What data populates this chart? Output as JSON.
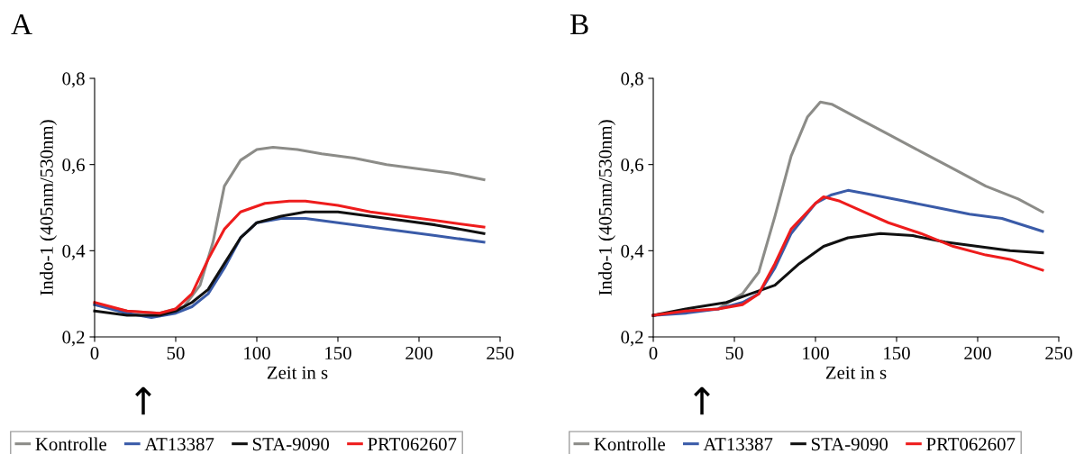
{
  "chart_data": [
    {
      "type": "line",
      "title": "A",
      "xlabel": "Zeit in s",
      "ylabel": "Indo-1 (405nm/530nm)",
      "xlim": [
        0,
        250
      ],
      "xticks": [
        0,
        50,
        100,
        150,
        200,
        250
      ],
      "ylim": [
        0.2,
        0.8
      ],
      "yticks": [
        {
          "value": 0.2,
          "label": "0,2"
        },
        {
          "value": 0.4,
          "label": "0,4"
        },
        {
          "value": 0.6,
          "label": "0,6"
        },
        {
          "value": 0.8,
          "label": "0,8"
        }
      ],
      "grid": false,
      "legend": "bottom",
      "marker": "none",
      "line_style": "solid",
      "annotations": [
        "↑"
      ],
      "series": [
        {
          "name": "Kontrolle",
          "color": "#8c8c88",
          "x": [
            0,
            20,
            40,
            55,
            65,
            73,
            80,
            90,
            100,
            110,
            125,
            140,
            160,
            180,
            200,
            220,
            240
          ],
          "values": [
            0.275,
            0.26,
            0.255,
            0.27,
            0.32,
            0.42,
            0.55,
            0.61,
            0.635,
            0.64,
            0.635,
            0.625,
            0.615,
            0.6,
            0.59,
            0.58,
            0.565
          ]
        },
        {
          "name": "AT13387",
          "color": "#3a5ba8",
          "x": [
            0,
            20,
            35,
            50,
            60,
            70,
            80,
            90,
            100,
            115,
            130,
            150,
            170,
            190,
            210,
            240
          ],
          "values": [
            0.275,
            0.255,
            0.245,
            0.255,
            0.27,
            0.3,
            0.36,
            0.43,
            0.465,
            0.475,
            0.475,
            0.465,
            0.455,
            0.445,
            0.435,
            0.42
          ]
        },
        {
          "name": "STA-9090",
          "color": "#111111",
          "x": [
            0,
            20,
            40,
            50,
            60,
            70,
            80,
            90,
            100,
            115,
            130,
            150,
            170,
            190,
            210,
            240
          ],
          "values": [
            0.26,
            0.25,
            0.25,
            0.26,
            0.28,
            0.31,
            0.37,
            0.43,
            0.465,
            0.48,
            0.49,
            0.49,
            0.48,
            0.47,
            0.46,
            0.44
          ]
        },
        {
          "name": "PRT062607",
          "color": "#ee1c1c",
          "x": [
            0,
            20,
            40,
            50,
            60,
            70,
            80,
            90,
            105,
            120,
            130,
            150,
            170,
            190,
            210,
            240
          ],
          "values": [
            0.28,
            0.26,
            0.255,
            0.265,
            0.3,
            0.38,
            0.45,
            0.49,
            0.51,
            0.515,
            0.515,
            0.505,
            0.49,
            0.48,
            0.47,
            0.455
          ]
        }
      ]
    },
    {
      "type": "line",
      "title": "B",
      "xlabel": "Zeit in s",
      "ylabel": "Indo-1 (405nm/530nm)",
      "xlim": [
        0,
        250
      ],
      "xticks": [
        0,
        50,
        100,
        150,
        200,
        250
      ],
      "ylim": [
        0.2,
        0.8
      ],
      "yticks": [
        {
          "value": 0.2,
          "label": "0,2"
        },
        {
          "value": 0.4,
          "label": "0,4"
        },
        {
          "value": 0.6,
          "label": "0,6"
        },
        {
          "value": 0.8,
          "label": "0,8"
        }
      ],
      "grid": false,
      "legend": "bottom",
      "marker": "none",
      "line_style": "solid",
      "annotations": [
        "↑"
      ],
      "series": [
        {
          "name": "Kontrolle",
          "color": "#8c8c88",
          "x": [
            0,
            20,
            40,
            55,
            65,
            75,
            85,
            95,
            103,
            110,
            125,
            145,
            165,
            185,
            205,
            225,
            240
          ],
          "values": [
            0.25,
            0.26,
            0.265,
            0.3,
            0.35,
            0.48,
            0.62,
            0.71,
            0.745,
            0.74,
            0.71,
            0.67,
            0.63,
            0.59,
            0.55,
            0.52,
            0.49
          ]
        },
        {
          "name": "AT13387",
          "color": "#3a5ba8",
          "x": [
            0,
            20,
            40,
            55,
            65,
            75,
            85,
            100,
            110,
            120,
            135,
            155,
            175,
            195,
            215,
            240
          ],
          "values": [
            0.25,
            0.255,
            0.265,
            0.28,
            0.3,
            0.36,
            0.44,
            0.51,
            0.53,
            0.54,
            0.53,
            0.515,
            0.5,
            0.485,
            0.475,
            0.445
          ]
        },
        {
          "name": "STA-9090",
          "color": "#111111",
          "x": [
            0,
            20,
            45,
            60,
            75,
            90,
            105,
            120,
            140,
            160,
            180,
            200,
            220,
            240
          ],
          "values": [
            0.25,
            0.265,
            0.28,
            0.3,
            0.32,
            0.37,
            0.41,
            0.43,
            0.44,
            0.435,
            0.42,
            0.41,
            0.4,
            0.395
          ]
        },
        {
          "name": "PRT062607",
          "color": "#ee1c1c",
          "x": [
            0,
            20,
            40,
            55,
            65,
            75,
            85,
            100,
            105,
            115,
            130,
            145,
            165,
            185,
            205,
            220,
            240
          ],
          "values": [
            0.25,
            0.26,
            0.265,
            0.275,
            0.3,
            0.37,
            0.45,
            0.51,
            0.525,
            0.515,
            0.49,
            0.465,
            0.44,
            0.41,
            0.39,
            0.38,
            0.355
          ]
        }
      ]
    }
  ]
}
